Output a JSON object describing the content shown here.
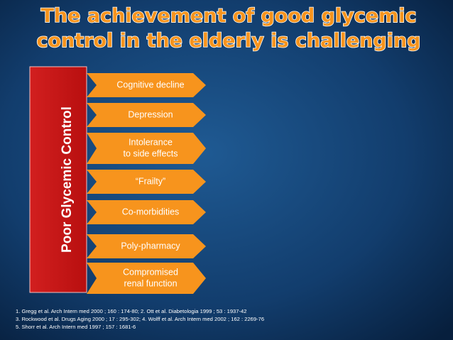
{
  "title": {
    "lines": [
      "The achievement of good glycemic",
      "control in the elderly is challenging"
    ]
  },
  "side_label": "Poor Glycemic Control",
  "items": [
    [
      "Cognitive decline"
    ],
    [
      "Depression"
    ],
    [
      "Intolerance",
      "to side effects"
    ],
    [
      "“Frailty”"
    ],
    [
      "Co-morbidities"
    ],
    [
      "Poly-pharmacy"
    ],
    [
      "Compromised",
      "renal function"
    ]
  ],
  "references": [
    "1. Gregg et al. Arch Intern med 2000 ; 160 : 174-80;  2. Ott et al. Diabetologia 1999 ; 53 : 1937-42",
    "3. Rockwood et al. Drugs Aging 2000 ; 17 : 295-302;  4. Wolff et al. Arch Intern med 2002 ; 162 : 2269-76",
    "5. Shorr et al. Arch Intern med 1997 ; 157 : 1681-6"
  ]
}
